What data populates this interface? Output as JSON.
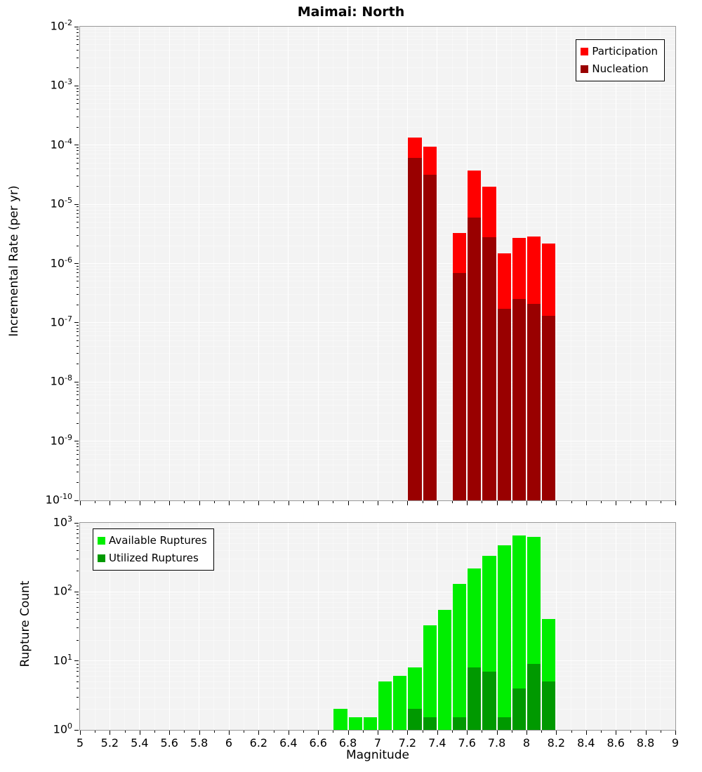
{
  "chart_data": [
    {
      "type": "bar",
      "title": "Maimai: North",
      "ylabel": "Incremental Rate (per yr)",
      "yscale": "log",
      "ylim": [
        1e-10,
        0.01
      ],
      "ylim_exp": [
        -10,
        -2
      ],
      "xlim": [
        5,
        9
      ],
      "bin_width": 0.1,
      "grid": true,
      "legend_position": "top-right",
      "y_tick_exponents": [
        -2,
        -3,
        -4,
        -5,
        -6,
        -7,
        -8,
        -9,
        -10
      ],
      "series": [
        {
          "name": "Participation",
          "color": "#ff0000",
          "bins": [
            [
              7.2,
              0.000135
            ],
            [
              7.3,
              9.5e-05
            ],
            [
              7.5,
              3.3e-06
            ],
            [
              7.6,
              3.7e-05
            ],
            [
              7.7,
              2e-05
            ],
            [
              7.8,
              1.5e-06
            ],
            [
              7.9,
              2.7e-06
            ],
            [
              8.0,
              2.9e-06
            ],
            [
              8.1,
              2.2e-06
            ]
          ]
        },
        {
          "name": "Nucleation",
          "color": "#990000",
          "bins": [
            [
              7.2,
              6e-05
            ],
            [
              7.3,
              3.2e-05
            ],
            [
              7.5,
              7e-07
            ],
            [
              7.6,
              6e-06
            ],
            [
              7.7,
              2.8e-06
            ],
            [
              7.8,
              1.7e-07
            ],
            [
              7.9,
              2.5e-07
            ],
            [
              8.0,
              2.1e-07
            ],
            [
              8.1,
              1.3e-07
            ]
          ]
        }
      ]
    },
    {
      "type": "bar",
      "ylabel": "Rupture Count",
      "xlabel": "Magnitude",
      "yscale": "log",
      "ylim": [
        1,
        1000
      ],
      "ylim_exp": [
        0,
        3
      ],
      "xlim": [
        5,
        9
      ],
      "bin_width": 0.1,
      "grid": true,
      "legend_position": "top-left",
      "y_tick_exponents": [
        3,
        2,
        1,
        0
      ],
      "x_ticks": [
        "5",
        "5.2",
        "5.4",
        "5.6",
        "5.8",
        "6",
        "6.2",
        "6.4",
        "6.6",
        "6.8",
        "7",
        "7.2",
        "7.4",
        "7.6",
        "7.8",
        "8",
        "8.2",
        "8.4",
        "8.6",
        "8.8",
        "9"
      ],
      "series": [
        {
          "name": "Available Ruptures",
          "color": "#00ee00",
          "bins": [
            [
              6.7,
              2
            ],
            [
              6.8,
              1
            ],
            [
              6.9,
              1
            ],
            [
              7.0,
              5
            ],
            [
              7.1,
              6
            ],
            [
              7.2,
              8
            ],
            [
              7.3,
              33
            ],
            [
              7.4,
              55
            ],
            [
              7.5,
              130
            ],
            [
              7.6,
              220
            ],
            [
              7.7,
              330
            ],
            [
              7.8,
              470
            ],
            [
              7.9,
              650
            ],
            [
              8.0,
              620
            ],
            [
              8.1,
              40
            ]
          ]
        },
        {
          "name": "Utilized Ruptures",
          "color": "#009900",
          "bins": [
            [
              7.2,
              2
            ],
            [
              7.3,
              1
            ],
            [
              7.5,
              1
            ],
            [
              7.6,
              8
            ],
            [
              7.7,
              7
            ],
            [
              7.8,
              1
            ],
            [
              7.9,
              4
            ],
            [
              8.0,
              9
            ],
            [
              8.1,
              5
            ]
          ]
        }
      ]
    }
  ]
}
